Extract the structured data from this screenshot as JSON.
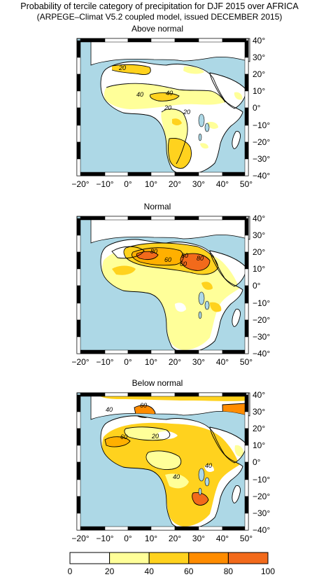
{
  "header": {
    "title": "Probability of tercile category of precipitation for DJF 2015 over AFRICA",
    "subtitle": "(ARPEGE–Climat V5.2 coupled model, issued DECEMBER 2015)"
  },
  "panels": [
    {
      "title": "Above normal",
      "contour_labels": [
        "20",
        "40",
        "40",
        "20",
        "20"
      ]
    },
    {
      "title": "Normal",
      "contour_labels": [
        "80",
        "60",
        "60",
        "80",
        "60"
      ]
    },
    {
      "title": "Below normal",
      "contour_labels": [
        "40",
        "60",
        "60",
        "20",
        "40",
        "40"
      ]
    }
  ],
  "axes": {
    "lon_ticks": [
      "−20°",
      "−10°",
      "0°",
      "10°",
      "20°",
      "30°",
      "40°",
      "50°"
    ],
    "lat_ticks": [
      "40°",
      "30°",
      "20°",
      "10°",
      "0°",
      "−10°",
      "−20°",
      "−30°",
      "−40°"
    ]
  },
  "colorbar": {
    "labels": [
      "0",
      "20",
      "40",
      "60",
      "80",
      "100"
    ],
    "colors": [
      "#ffffff",
      "#ffff99",
      "#ffd21e",
      "#ffb000",
      "#ff8c00",
      "#f26a1b"
    ]
  },
  "colors": {
    "ocean": "#add8e6",
    "lake": "#add8e6",
    "contour": "#000000"
  }
}
